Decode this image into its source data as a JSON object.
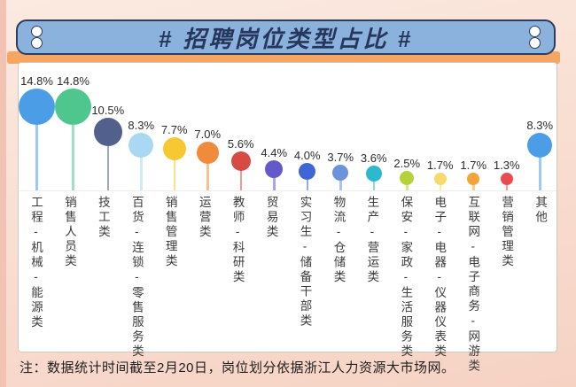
{
  "header": {
    "title": "# 招聘岗位类型占比 #",
    "bar_color": "#8AB2DD",
    "border_color": "#2E3C5E",
    "strip_color": "#F5A660",
    "title_color": "#27365A"
  },
  "note": {
    "text": "注：数据统计时间截至2月20日，岗位划分依据浙江人力资源大市场网。"
  },
  "chart_data": {
    "type": "lollipop",
    "title": "招聘岗位类型占比",
    "value_unit": "%",
    "grid": false,
    "legend_position": "none",
    "encoding": "bubble size and stem height proportional to value",
    "categories": [
      "工程-机械-能源类",
      "销售人员类",
      "技工类",
      "百货-连锁-零售服务类",
      "销售管理类",
      "运营类",
      "教师-科研类",
      "贸易类",
      "实习生-储备干部类",
      "物流-仓储类",
      "生产-营运类",
      "保安-家政-生活服务类",
      "电子-电器-仪器仪表类",
      "互联网-电子商务-网游类",
      "营销管理类",
      "其他"
    ],
    "values": [
      14.8,
      14.8,
      10.5,
      8.3,
      7.7,
      7.0,
      5.6,
      4.4,
      4.0,
      3.7,
      3.6,
      2.5,
      1.7,
      1.7,
      1.3,
      8.3
    ],
    "value_labels": [
      "14.8%",
      "14.8%",
      "10.5%",
      "8.3%",
      "7.7%",
      "7.0%",
      "5.6%",
      "4.4%",
      "4.0%",
      "3.7%",
      "3.6%",
      "2.5%",
      "1.7%",
      "1.7%",
      "1.3%",
      "8.3%"
    ],
    "colors": [
      "#4B9EE6",
      "#4FC68E",
      "#51618C",
      "#A9D9F2",
      "#F8C832",
      "#F18B3C",
      "#D84B45",
      "#6459CB",
      "#3E66D4",
      "#6B93DB",
      "#2AB9CE",
      "#B6D23B",
      "#F6DA6E",
      "#F2A438",
      "#EA4B52",
      "#4B9EE6"
    ]
  }
}
